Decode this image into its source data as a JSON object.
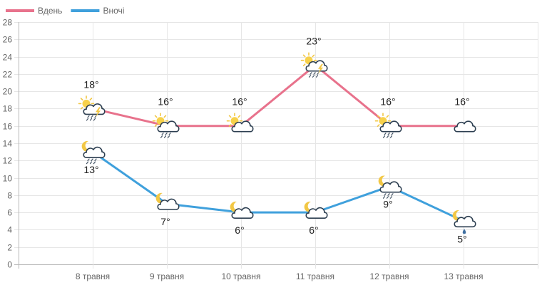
{
  "chart_data": {
    "type": "line",
    "categories": [
      "8 травня",
      "9 травня",
      "10 травня",
      "11 травня",
      "12 травня",
      "13 травня"
    ],
    "ylim": [
      0,
      28
    ],
    "yticks": [
      0,
      2,
      4,
      6,
      8,
      10,
      12,
      14,
      16,
      18,
      20,
      22,
      24,
      26,
      28
    ],
    "grid": true,
    "legend_position": "top-left",
    "series": [
      {
        "name": "Вдень",
        "color": "#e8728c",
        "values": [
          18,
          16,
          16,
          23,
          16,
          16
        ],
        "labels": [
          "18°",
          "16°",
          "16°",
          "23°",
          "16°",
          "16°"
        ],
        "icons": [
          "sun-cloud-rain-thunder-icon",
          "sun-cloud-rain-icon",
          "sun-cloud-icon",
          "sun-cloud-rain-thunder-icon",
          "sun-cloud-rain-icon",
          "cloud-icon"
        ]
      },
      {
        "name": "Вночі",
        "color": "#3fa0dc",
        "values": [
          13,
          7,
          6,
          6,
          9,
          5
        ],
        "labels": [
          "13°",
          "7°",
          "6°",
          "6°",
          "9°",
          "5°"
        ],
        "icons": [
          "moon-cloud-rain-icon",
          "moon-cloud-icon",
          "moon-cloud-icon",
          "moon-cloud-icon",
          "moon-cloud-rain-icon",
          "moon-cloud-drop-icon"
        ]
      }
    ]
  }
}
